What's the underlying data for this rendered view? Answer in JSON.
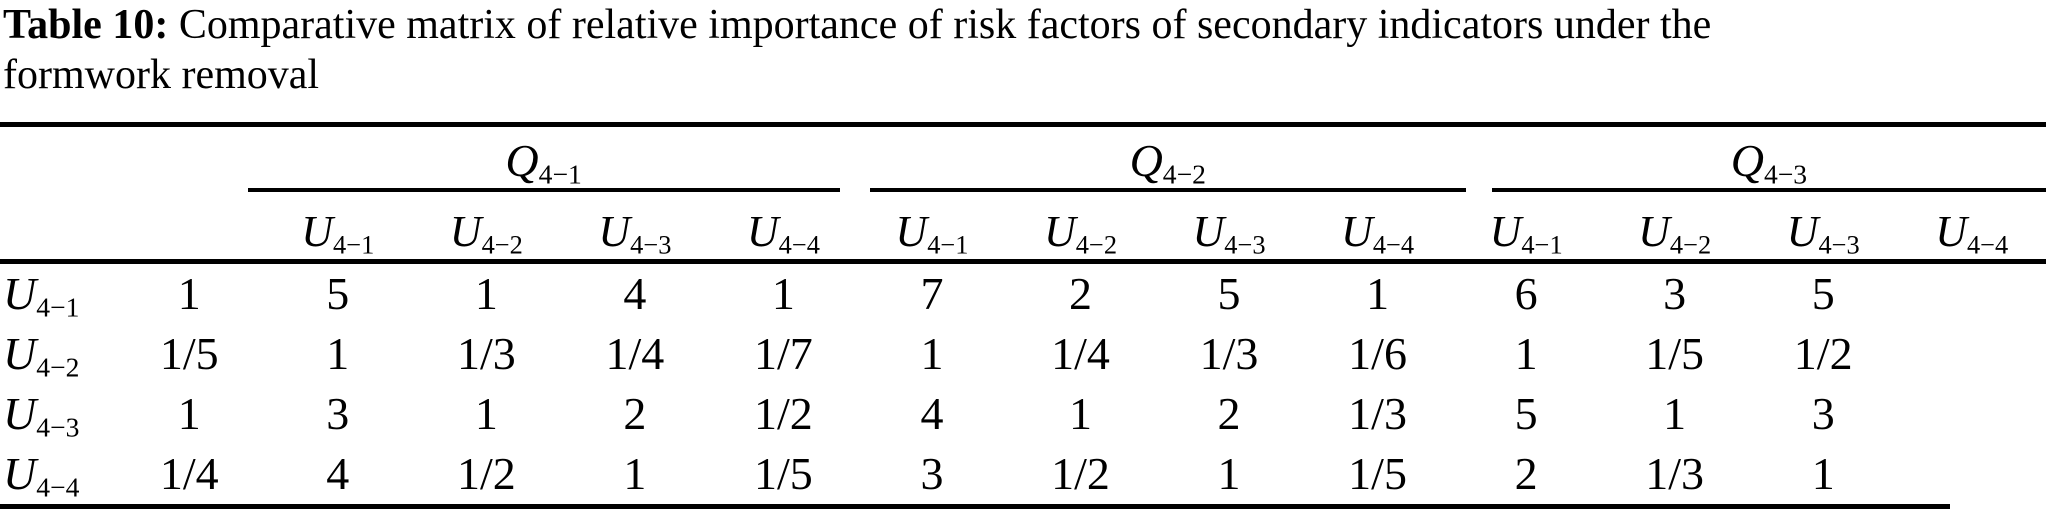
{
  "title": {
    "label": "Table 10:",
    "line1": "Comparative matrix of relative importance of risk factors of secondary indicators under the",
    "line2": "formwork removal"
  },
  "table": {
    "groups": [
      {
        "base": "Q",
        "sub": "4−1"
      },
      {
        "base": "Q",
        "sub": "4−2"
      },
      {
        "base": "Q",
        "sub": "4−3"
      }
    ],
    "col_headers": [
      {
        "base": "U",
        "sub": "4−1"
      },
      {
        "base": "U",
        "sub": "4−2"
      },
      {
        "base": "U",
        "sub": "4−3"
      },
      {
        "base": "U",
        "sub": "4−4"
      },
      {
        "base": "U",
        "sub": "4−1"
      },
      {
        "base": "U",
        "sub": "4−2"
      },
      {
        "base": "U",
        "sub": "4−3"
      },
      {
        "base": "U",
        "sub": "4−4"
      },
      {
        "base": "U",
        "sub": "4−1"
      },
      {
        "base": "U",
        "sub": "4−2"
      },
      {
        "base": "U",
        "sub": "4−3"
      },
      {
        "base": "U",
        "sub": "4−4"
      }
    ],
    "rows": [
      {
        "label": {
          "base": "U",
          "sub": "4−1"
        },
        "values": [
          "1",
          "5",
          "1",
          "4",
          "1",
          "7",
          "2",
          "5",
          "1",
          "6",
          "3",
          "5"
        ]
      },
      {
        "label": {
          "base": "U",
          "sub": "4−2"
        },
        "values": [
          "1/5",
          "1",
          "1/3",
          "1/4",
          "1/7",
          "1",
          "1/4",
          "1/3",
          "1/6",
          "1",
          "1/5",
          "1/2"
        ]
      },
      {
        "label": {
          "base": "U",
          "sub": "4−3"
        },
        "values": [
          "1",
          "3",
          "1",
          "2",
          "1/2",
          "4",
          "1",
          "2",
          "1/3",
          "5",
          "1",
          "3"
        ]
      },
      {
        "label": {
          "base": "U",
          "sub": "4−4"
        },
        "values": [
          "1/4",
          "4",
          "1/2",
          "1",
          "1/5",
          "3",
          "1/2",
          "1",
          "1/5",
          "2",
          "1/3",
          "1"
        ]
      }
    ]
  }
}
